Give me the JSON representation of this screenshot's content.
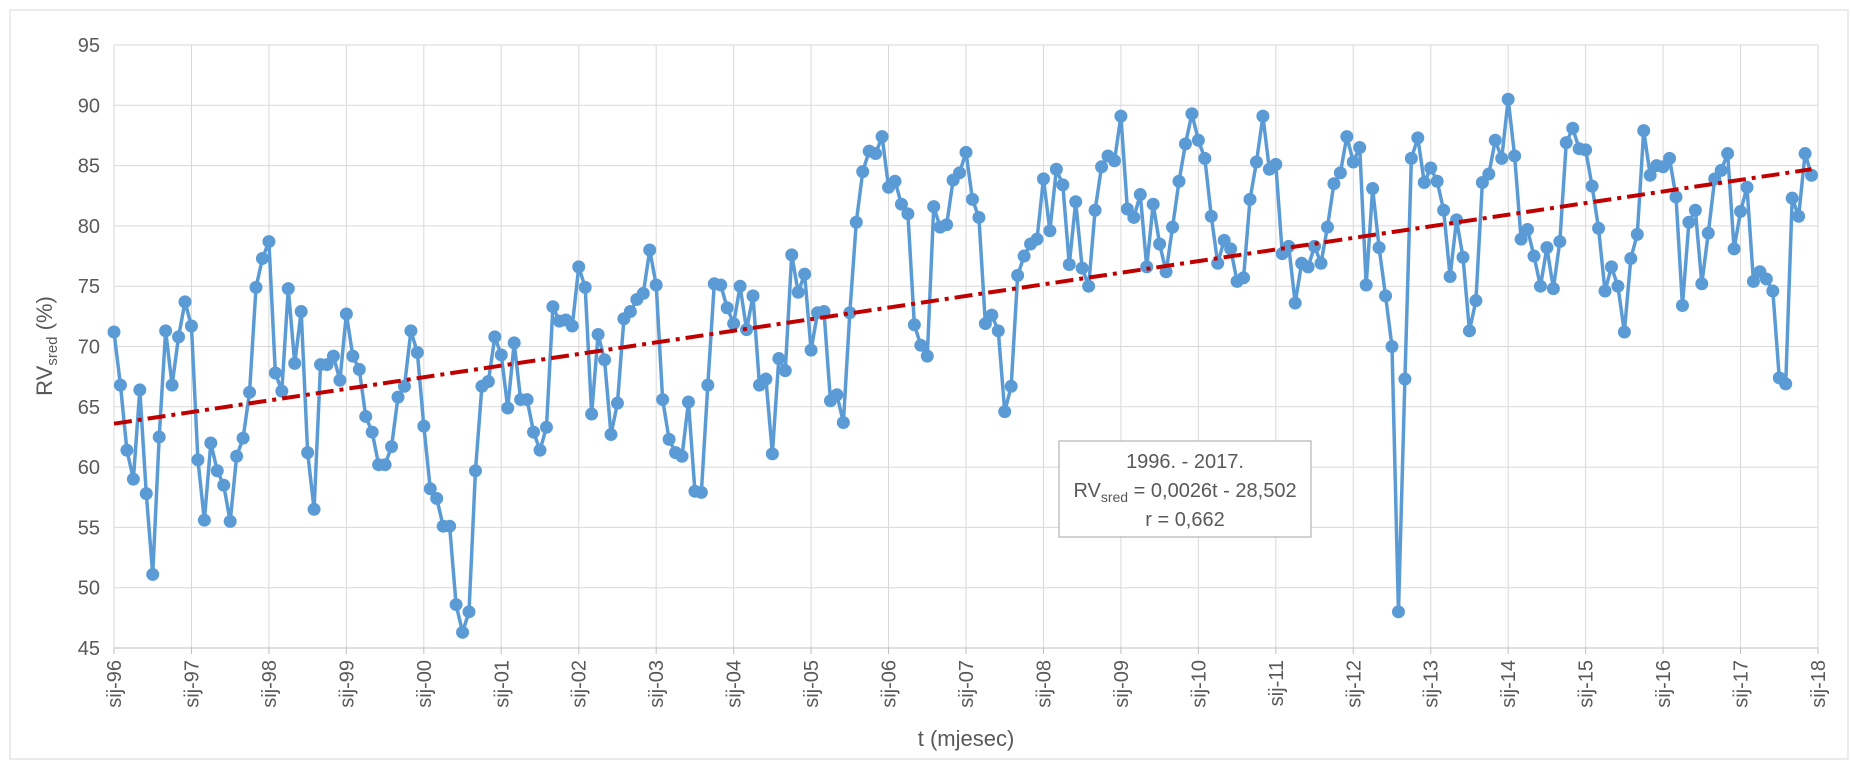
{
  "chart_data": {
    "type": "line",
    "y_label": {
      "main": "RV",
      "sub": "sred",
      "rest": " (%)"
    },
    "x_label": "t (mjesec)",
    "annotation": {
      "line1": "1996. - 2017.",
      "line2": {
        "main": "RV",
        "sub": "sred",
        "rest": " = 0,0026t - 28,502"
      },
      "line3": "r = 0,662"
    },
    "categories": [
      "sij-96",
      null,
      null,
      null,
      null,
      null,
      null,
      null,
      null,
      null,
      null,
      null,
      "sij-97",
      null,
      null,
      null,
      null,
      null,
      null,
      null,
      null,
      null,
      null,
      null,
      "sij-98",
      null,
      null,
      null,
      null,
      null,
      null,
      null,
      null,
      null,
      null,
      null,
      "sij-99",
      null,
      null,
      null,
      null,
      null,
      null,
      null,
      null,
      null,
      null,
      null,
      "sij-00",
      null,
      null,
      null,
      null,
      null,
      null,
      null,
      null,
      null,
      null,
      null,
      "sij-01",
      null,
      null,
      null,
      null,
      null,
      null,
      null,
      null,
      null,
      null,
      null,
      "sij-02",
      null,
      null,
      null,
      null,
      null,
      null,
      null,
      null,
      null,
      null,
      null,
      "sij-03",
      null,
      null,
      null,
      null,
      null,
      null,
      null,
      null,
      null,
      null,
      null,
      "sij-04",
      null,
      null,
      null,
      null,
      null,
      null,
      null,
      null,
      null,
      null,
      null,
      "sij-05",
      null,
      null,
      null,
      null,
      null,
      null,
      null,
      null,
      null,
      null,
      null,
      "sij-06",
      null,
      null,
      null,
      null,
      null,
      null,
      null,
      null,
      null,
      null,
      null,
      "sij-07",
      null,
      null,
      null,
      null,
      null,
      null,
      null,
      null,
      null,
      null,
      null,
      "sij-08",
      null,
      null,
      null,
      null,
      null,
      null,
      null,
      null,
      null,
      null,
      null,
      "sij-09",
      null,
      null,
      null,
      null,
      null,
      null,
      null,
      null,
      null,
      null,
      null,
      "sij-10",
      null,
      null,
      null,
      null,
      null,
      null,
      null,
      null,
      null,
      null,
      null,
      "sij-11",
      null,
      null,
      null,
      null,
      null,
      null,
      null,
      null,
      null,
      null,
      null,
      "sij-12",
      null,
      null,
      null,
      null,
      null,
      null,
      null,
      null,
      null,
      null,
      null,
      "sij-13",
      null,
      null,
      null,
      null,
      null,
      null,
      null,
      null,
      null,
      null,
      null,
      "sij-14",
      null,
      null,
      null,
      null,
      null,
      null,
      null,
      null,
      null,
      null,
      null,
      "sij-15",
      null,
      null,
      null,
      null,
      null,
      null,
      null,
      null,
      null,
      null,
      null,
      "sij-16",
      null,
      null,
      null,
      null,
      null,
      null,
      null,
      null,
      null,
      null,
      null,
      "sij-17",
      null,
      null,
      null,
      null,
      null,
      null,
      null,
      null,
      null,
      null,
      null,
      "sij-18"
    ],
    "series": [
      {
        "color": "#5b9bd5",
        "values": [
          71.2,
          66.8,
          61.4,
          59.0,
          66.4,
          57.8,
          51.1,
          62.5,
          71.3,
          66.8,
          70.8,
          73.7,
          71.7,
          60.6,
          55.6,
          62.0,
          59.7,
          58.5,
          55.5,
          60.9,
          62.4,
          66.2,
          74.9,
          77.3,
          78.7,
          67.8,
          66.3,
          74.8,
          68.6,
          72.9,
          61.2,
          56.5,
          68.5,
          68.5,
          69.2,
          67.2,
          72.7,
          69.2,
          68.1,
          64.2,
          62.9,
          60.2,
          60.2,
          61.7,
          65.8,
          66.7,
          71.3,
          69.5,
          63.4,
          58.2,
          57.4,
          55.1,
          55.1,
          48.6,
          46.3,
          48.0,
          59.7,
          66.7,
          67.1,
          70.8,
          69.3,
          64.9,
          70.3,
          65.6,
          65.6,
          62.9,
          61.4,
          63.3,
          73.3,
          72.1,
          72.2,
          71.7,
          76.6,
          74.9,
          64.4,
          71.0,
          68.9,
          62.7,
          65.3,
          72.3,
          72.9,
          73.9,
          74.4,
          78.0,
          75.1,
          65.6,
          62.3,
          61.2,
          60.9,
          65.4,
          58.0,
          57.9,
          66.8,
          75.2,
          75.1,
          73.2,
          71.9,
          75.0,
          71.4,
          74.2,
          66.8,
          67.3,
          61.1,
          69.0,
          68.0,
          77.6,
          74.5,
          76.0,
          69.7,
          72.8,
          72.9,
          65.5,
          66.0,
          63.7,
          72.8,
          80.3,
          84.5,
          86.2,
          86.0,
          87.4,
          83.2,
          83.7,
          81.8,
          81.0,
          71.8,
          70.1,
          69.2,
          81.6,
          79.9,
          80.1,
          83.8,
          84.4,
          86.1,
          82.2,
          80.7,
          71.9,
          72.6,
          71.3,
          64.6,
          66.7,
          75.9,
          77.5,
          78.5,
          78.9,
          83.9,
          79.6,
          84.7,
          83.4,
          76.8,
          82.0,
          76.5,
          75.0,
          81.3,
          84.9,
          85.8,
          85.4,
          89.1,
          81.4,
          80.7,
          82.6,
          76.6,
          81.8,
          78.5,
          76.2,
          79.9,
          83.7,
          86.8,
          89.3,
          87.1,
          85.6,
          80.8,
          76.9,
          78.8,
          78.1,
          75.4,
          75.7,
          82.2,
          85.3,
          89.1,
          84.7,
          85.1,
          77.7,
          78.3,
          73.6,
          76.9,
          76.6,
          78.3,
          76.9,
          79.9,
          83.5,
          84.4,
          87.4,
          85.3,
          86.5,
          75.1,
          83.1,
          78.2,
          74.2,
          70.0,
          48.0,
          67.3,
          85.6,
          87.3,
          83.6,
          84.8,
          83.7,
          81.3,
          75.8,
          80.5,
          77.4,
          71.3,
          73.8,
          83.6,
          84.3,
          87.1,
          85.6,
          90.5,
          85.8,
          78.9,
          79.7,
          77.5,
          75.0,
          78.2,
          74.8,
          78.7,
          86.9,
          88.1,
          86.4,
          86.3,
          83.3,
          79.8,
          74.6,
          76.6,
          75.0,
          71.2,
          77.3,
          79.3,
          87.9,
          84.2,
          85.0,
          84.9,
          85.6,
          82.4,
          73.4,
          80.3,
          81.3,
          75.2,
          79.4,
          83.9,
          84.6,
          86.0,
          78.1,
          81.2,
          83.2,
          75.4,
          76.2,
          75.6,
          74.6,
          67.4,
          66.9,
          82.3,
          80.8,
          86.0,
          84.2,
          null
        ]
      }
    ],
    "trendline": {
      "color": "#c00000",
      "start": 63.6,
      "end": 84.7
    },
    "ylim": [
      45,
      95
    ],
    "yticks": [
      45,
      50,
      55,
      60,
      65,
      70,
      75,
      80,
      85,
      90,
      95
    ],
    "grid": true
  }
}
